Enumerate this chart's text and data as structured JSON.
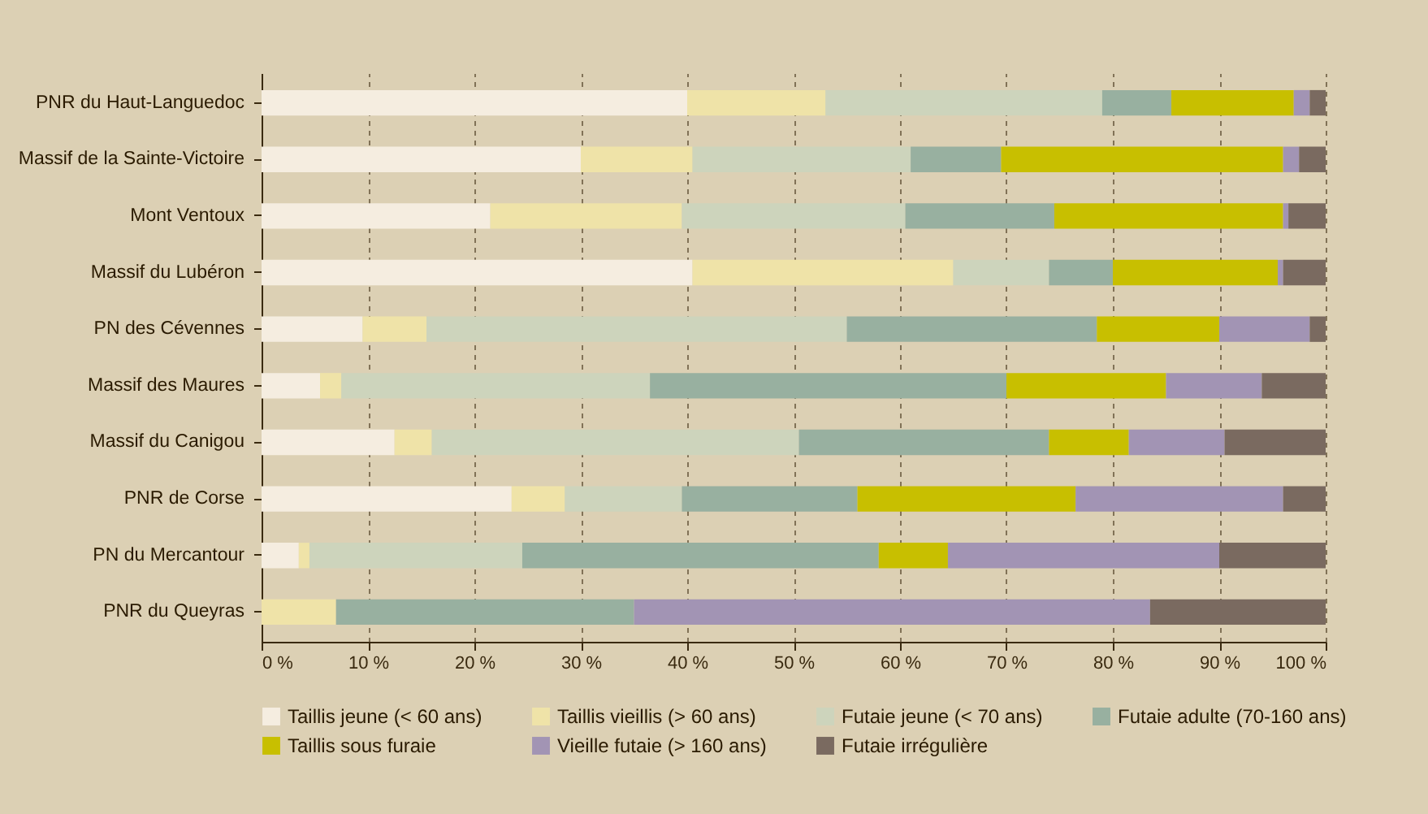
{
  "chart_data": {
    "type": "bar",
    "orientation": "horizontal",
    "stacked": true,
    "categories": [
      "PNR du Haut-Languedoc",
      "Massif de la Sainte-Victoire",
      "Mont Ventoux",
      "Massif du Lubéron",
      "PN des Cévennes",
      "Massif des Maures",
      "Massif du Canigou",
      "PNR de Corse",
      "PN du Mercantour",
      "PNR du Queyras"
    ],
    "series": [
      {
        "name": "Taillis jeune (< 60 ans)",
        "color": "#f5ede0",
        "values": [
          40,
          30,
          21.5,
          40.5,
          9.5,
          5.5,
          12.5,
          23.5,
          3.5,
          0
        ]
      },
      {
        "name": "Taillis vieillis (> 60 ans)",
        "color": "#efe3a8",
        "values": [
          13,
          10.5,
          18,
          24.5,
          6,
          2,
          3.5,
          5,
          1,
          7
        ]
      },
      {
        "name": "Futaie jeune (< 70 ans)",
        "color": "#cdd4bc",
        "values": [
          26,
          20.5,
          21,
          9,
          39.5,
          29,
          34.5,
          11,
          20,
          0
        ]
      },
      {
        "name": "Futaie adulte (70-160 ans)",
        "color": "#98b0a0",
        "values": [
          6.5,
          8.5,
          14,
          6,
          23.5,
          33.5,
          23.5,
          16.5,
          33.5,
          28
        ]
      },
      {
        "name": "Taillis sous furaie",
        "color": "#c8bf00",
        "values": [
          11.5,
          26.5,
          21.5,
          15.5,
          11.5,
          15,
          7.5,
          20.5,
          6.5,
          0
        ]
      },
      {
        "name": "Vieille futaie (> 160 ans)",
        "color": "#a294b4",
        "values": [
          1.5,
          1.5,
          0.5,
          0.5,
          8.5,
          9,
          9,
          19.5,
          25.5,
          48.5
        ]
      },
      {
        "name": "Futaie irrégulière",
        "color": "#7a6a60",
        "values": [
          1.5,
          2.5,
          3.5,
          4,
          1.5,
          6,
          9.5,
          4,
          10,
          16.5
        ]
      }
    ],
    "xlim": [
      0,
      100
    ],
    "xticks": [
      {
        "value": 0,
        "label": "0 %"
      },
      {
        "value": 10,
        "label": "10 %"
      },
      {
        "value": 20,
        "label": "20 %"
      },
      {
        "value": 30,
        "label": "30 %"
      },
      {
        "value": 40,
        "label": "40 %"
      },
      {
        "value": 50,
        "label": "50 %"
      },
      {
        "value": 60,
        "label": "60 %"
      },
      {
        "value": 70,
        "label": "70 %"
      },
      {
        "value": 80,
        "label": "80 %"
      },
      {
        "value": 90,
        "label": "90 %"
      },
      {
        "value": 100,
        "label": "100 %"
      }
    ],
    "grid": "x",
    "legend": "bottom"
  }
}
